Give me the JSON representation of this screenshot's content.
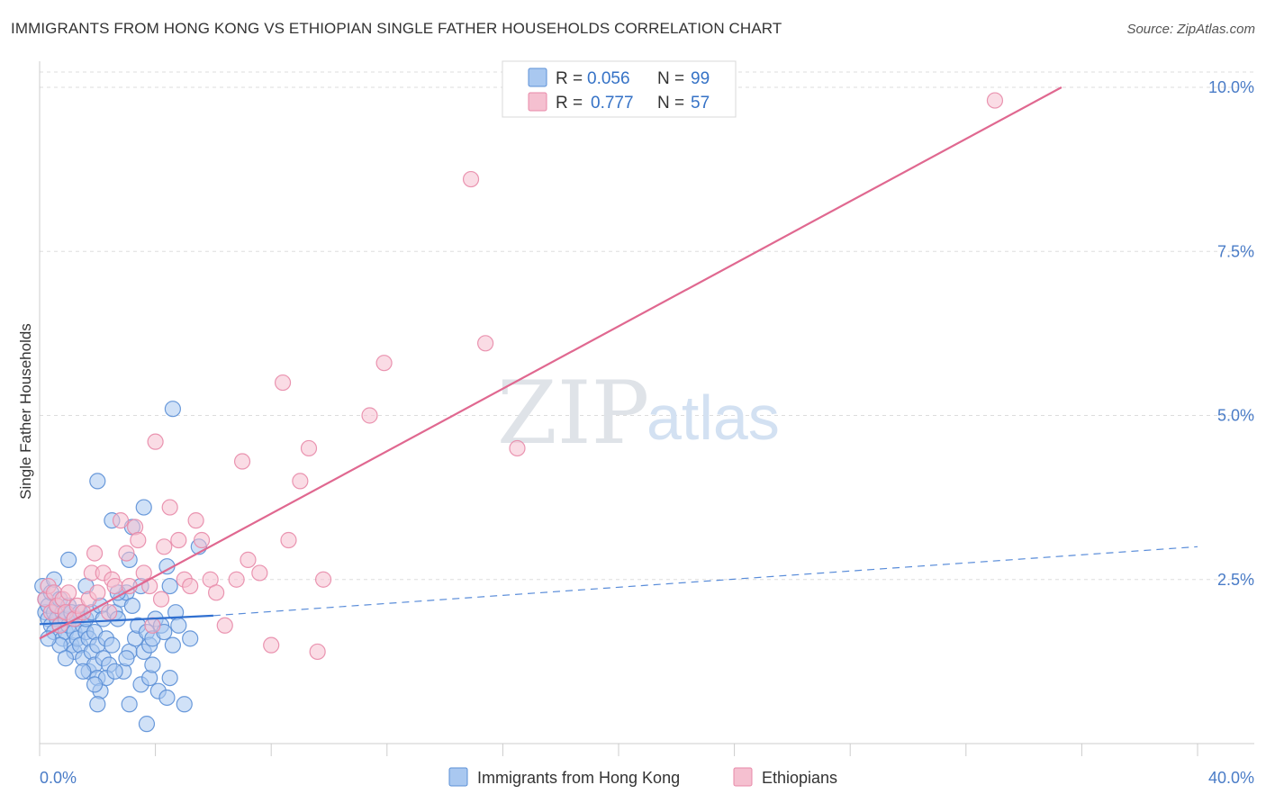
{
  "header": {
    "title": "IMMIGRANTS FROM HONG KONG VS ETHIOPIAN SINGLE FATHER HOUSEHOLDS CORRELATION CHART",
    "source": "Source: ZipAtlas.com"
  },
  "watermark": {
    "zip": "ZIP",
    "atlas": "atlas"
  },
  "legend_box": {
    "rows": [
      {
        "r_label": "R =",
        "r_value": "0.056",
        "n_label": "N =",
        "n_value": "99",
        "color": "#a9c8f0"
      },
      {
        "r_label": "R =",
        "r_value": "0.777",
        "n_label": "N =",
        "n_value": "57",
        "color": "#f5b8cb"
      }
    ]
  },
  "colors": {
    "blue_fill": "#a9c8f0",
    "blue_stroke": "#5b8fd6",
    "blue_line": "#2f6fd0",
    "pink_fill": "#f5c0d0",
    "pink_stroke": "#e889a8",
    "pink_line": "#e06890",
    "axis_text": "#4a7cc7",
    "grid": "#dddddd"
  },
  "chart_data": {
    "type": "scatter",
    "ylabel": "Single Father Households",
    "xlim": [
      0,
      40
    ],
    "ylim": [
      0,
      10.5
    ],
    "x_tick_labels": [
      {
        "x": 0,
        "label": "0.0%"
      },
      {
        "x": 40,
        "label": "40.0%"
      }
    ],
    "x_minor_ticks": [
      0,
      4,
      8,
      12,
      16,
      20,
      24,
      28,
      32,
      36,
      40
    ],
    "y_ticks": [
      {
        "y": 2.5,
        "label": "2.5%"
      },
      {
        "y": 5.0,
        "label": "5.0%"
      },
      {
        "y": 7.5,
        "label": "7.5%"
      },
      {
        "y": 10.0,
        "label": "10.0%"
      }
    ],
    "grid": true,
    "legend_position": "bottom",
    "series": [
      {
        "name": "Immigrants from Hong Kong",
        "color": "#a9c8f0",
        "r": 0.056,
        "n": 99,
        "trend": {
          "solid": [
            [
              0,
              1.82
            ],
            [
              6,
              1.95
            ]
          ],
          "dashed": [
            [
              6,
              1.95
            ],
            [
              40,
              3.0
            ]
          ]
        },
        "points": [
          [
            0.1,
            2.4
          ],
          [
            0.2,
            2.2
          ],
          [
            0.2,
            2.0
          ],
          [
            0.3,
            1.9
          ],
          [
            0.3,
            2.1
          ],
          [
            0.4,
            1.8
          ],
          [
            0.4,
            2.3
          ],
          [
            0.5,
            2.0
          ],
          [
            0.5,
            1.7
          ],
          [
            0.6,
            1.9
          ],
          [
            0.6,
            2.1
          ],
          [
            0.7,
            2.2
          ],
          [
            0.7,
            1.8
          ],
          [
            0.8,
            2.0
          ],
          [
            0.8,
            1.6
          ],
          [
            0.9,
            1.9
          ],
          [
            0.9,
            1.7
          ],
          [
            1.0,
            2.1
          ],
          [
            1.0,
            1.8
          ],
          [
            1.1,
            1.5
          ],
          [
            1.1,
            2.0
          ],
          [
            1.2,
            1.7
          ],
          [
            1.2,
            1.4
          ],
          [
            1.3,
            1.9
          ],
          [
            1.3,
            1.6
          ],
          [
            1.4,
            2.0
          ],
          [
            1.4,
            1.5
          ],
          [
            1.5,
            1.8
          ],
          [
            1.5,
            1.3
          ],
          [
            1.6,
            1.7
          ],
          [
            1.6,
            1.9
          ],
          [
            1.7,
            1.1
          ],
          [
            1.7,
            1.6
          ],
          [
            1.8,
            2.0
          ],
          [
            1.8,
            1.4
          ],
          [
            1.9,
            1.2
          ],
          [
            1.9,
            1.7
          ],
          [
            2.0,
            1.0
          ],
          [
            2.0,
            1.5
          ],
          [
            2.1,
            2.1
          ],
          [
            2.1,
            0.8
          ],
          [
            2.2,
            1.3
          ],
          [
            2.2,
            1.9
          ],
          [
            2.3,
            1.6
          ],
          [
            2.4,
            1.2
          ],
          [
            2.5,
            1.5
          ],
          [
            2.6,
            2.0
          ],
          [
            2.7,
            1.9
          ],
          [
            2.8,
            2.2
          ],
          [
            2.9,
            1.1
          ],
          [
            3.0,
            2.3
          ],
          [
            3.1,
            1.4
          ],
          [
            3.2,
            2.1
          ],
          [
            3.3,
            1.6
          ],
          [
            3.4,
            1.8
          ],
          [
            3.5,
            0.9
          ],
          [
            3.6,
            1.4
          ],
          [
            3.7,
            1.7
          ],
          [
            3.8,
            1.5
          ],
          [
            3.9,
            1.6
          ],
          [
            4.0,
            1.9
          ],
          [
            4.1,
            0.8
          ],
          [
            4.2,
            1.8
          ],
          [
            4.3,
            1.7
          ],
          [
            4.5,
            2.4
          ],
          [
            4.6,
            1.5
          ],
          [
            4.7,
            2.0
          ],
          [
            4.8,
            1.8
          ],
          [
            5.0,
            0.6
          ],
          [
            5.2,
            1.6
          ],
          [
            5.5,
            3.0
          ],
          [
            2.0,
            4.0
          ],
          [
            3.6,
            3.6
          ],
          [
            3.2,
            3.3
          ],
          [
            2.5,
            3.4
          ],
          [
            4.6,
            5.1
          ],
          [
            1.0,
            2.8
          ],
          [
            3.1,
            2.8
          ],
          [
            4.4,
            2.7
          ],
          [
            1.6,
            2.4
          ],
          [
            2.7,
            2.3
          ],
          [
            3.5,
            2.4
          ],
          [
            2.0,
            0.6
          ],
          [
            3.1,
            0.6
          ],
          [
            3.7,
            0.3
          ],
          [
            4.4,
            0.7
          ],
          [
            4.5,
            1.0
          ],
          [
            3.8,
            1.0
          ],
          [
            2.3,
            1.0
          ],
          [
            1.9,
            0.9
          ],
          [
            0.7,
            1.5
          ],
          [
            1.2,
            1.9
          ],
          [
            0.5,
            2.5
          ],
          [
            1.5,
            1.1
          ],
          [
            0.3,
            1.6
          ],
          [
            2.6,
            1.1
          ],
          [
            0.9,
            1.3
          ],
          [
            3.0,
            1.3
          ],
          [
            3.9,
            1.2
          ]
        ]
      },
      {
        "name": "Ethiopians",
        "color": "#f5b8cb",
        "r": 0.777,
        "n": 57,
        "trend": {
          "solid": [
            [
              0,
              1.6
            ],
            [
              35.3,
              10.0
            ]
          ]
        },
        "points": [
          [
            0.2,
            2.2
          ],
          [
            0.3,
            2.4
          ],
          [
            0.4,
            2.0
          ],
          [
            0.5,
            2.3
          ],
          [
            0.6,
            2.1
          ],
          [
            0.7,
            1.8
          ],
          [
            0.8,
            2.2
          ],
          [
            0.9,
            2.0
          ],
          [
            1.0,
            2.3
          ],
          [
            1.2,
            1.9
          ],
          [
            1.3,
            2.1
          ],
          [
            1.5,
            2.0
          ],
          [
            1.7,
            2.2
          ],
          [
            1.8,
            2.6
          ],
          [
            1.9,
            2.9
          ],
          [
            2.0,
            2.3
          ],
          [
            2.2,
            2.6
          ],
          [
            2.4,
            2.0
          ],
          [
            2.5,
            2.5
          ],
          [
            2.6,
            2.4
          ],
          [
            2.8,
            3.4
          ],
          [
            3.0,
            2.9
          ],
          [
            3.1,
            2.4
          ],
          [
            3.3,
            3.3
          ],
          [
            3.4,
            3.1
          ],
          [
            3.6,
            2.6
          ],
          [
            3.8,
            2.4
          ],
          [
            3.9,
            1.8
          ],
          [
            4.0,
            4.6
          ],
          [
            4.2,
            2.2
          ],
          [
            4.3,
            3.0
          ],
          [
            4.5,
            3.6
          ],
          [
            4.8,
            3.1
          ],
          [
            5.0,
            2.5
          ],
          [
            5.2,
            2.4
          ],
          [
            5.4,
            3.4
          ],
          [
            5.6,
            3.1
          ],
          [
            5.9,
            2.5
          ],
          [
            6.1,
            2.3
          ],
          [
            6.4,
            1.8
          ],
          [
            6.8,
            2.5
          ],
          [
            7.0,
            4.3
          ],
          [
            7.2,
            2.8
          ],
          [
            7.6,
            2.6
          ],
          [
            8.0,
            1.5
          ],
          [
            8.4,
            5.5
          ],
          [
            8.6,
            3.1
          ],
          [
            9.0,
            4.0
          ],
          [
            9.3,
            4.5
          ],
          [
            9.6,
            1.4
          ],
          [
            9.8,
            2.5
          ],
          [
            11.4,
            5.0
          ],
          [
            11.9,
            5.8
          ],
          [
            14.9,
            8.6
          ],
          [
            15.4,
            6.1
          ],
          [
            16.5,
            4.5
          ],
          [
            33.0,
            9.8
          ]
        ]
      }
    ]
  }
}
